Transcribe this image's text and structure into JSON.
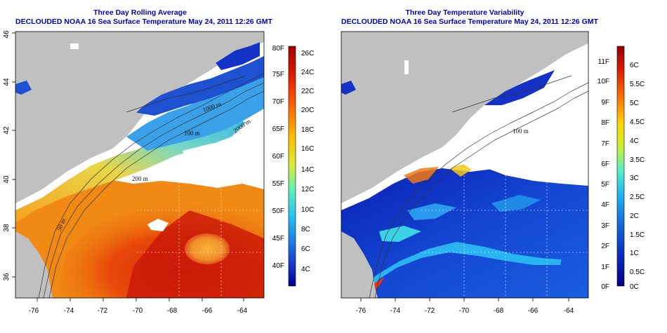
{
  "left_panel": {
    "title_line1": "Three Day Rolling Average",
    "title_line2": "DECLOUDED NOAA 16 Sea Surface Temperature May 24, 2011 12:26 GMT",
    "x_ticks": [
      "-76",
      "-74",
      "-72",
      "-70",
      "-68",
      "-66",
      "-64"
    ],
    "y_ticks": [
      "36",
      "38",
      "40",
      "42",
      "44",
      "46"
    ],
    "colorbar_f_labels": [
      "80F",
      "75F",
      "70F",
      "65F",
      "60F",
      "55F",
      "50F",
      "45F",
      "40F"
    ],
    "colorbar_c_labels": [
      "26C",
      "24C",
      "22C",
      "20C",
      "18C",
      "16C",
      "14C",
      "12C",
      "10C",
      "8C",
      "6C",
      "4C"
    ],
    "contour_labels": [
      "100 m",
      "200 m",
      "50 m",
      "1000 m",
      "2000 m"
    ]
  },
  "right_panel": {
    "title_line1": "Three Day Temperature Variability",
    "title_line2": "DECLOUDED NOAA 16 Sea Surface Temperature May 24, 2011 12:26 GMT",
    "x_ticks": [
      "-76",
      "-74",
      "-72",
      "-70",
      "-68",
      "-66",
      "-64"
    ],
    "colorbar_f_labels": [
      "11F",
      "10F",
      "9F",
      "8F",
      "7F",
      "6F",
      "5F",
      "4F",
      "3F",
      "2F",
      "1F",
      "0F"
    ],
    "colorbar_c_labels": [
      "6C",
      "5.5C",
      "5C",
      "4.5C",
      "4C",
      "3.5C",
      "3C",
      "2.5C",
      "2C",
      "1.5C",
      "1C",
      "0.5C",
      "0C"
    ],
    "contour_labels": [
      "100 m"
    ]
  },
  "colors": {
    "title": "#0000b4",
    "land": "#c0c0c0",
    "cloud": "#ffffff"
  }
}
